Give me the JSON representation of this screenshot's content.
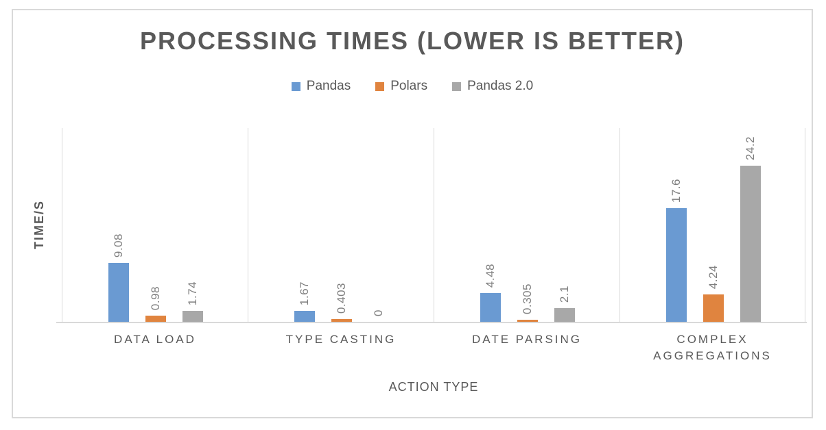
{
  "chart_data": {
    "type": "bar",
    "title": "PROCESSING TIMES (LOWER IS BETTER)",
    "xlabel": "ACTION TYPE",
    "ylabel": "TIME/S",
    "ylim": [
      0,
      30
    ],
    "grid": "vertical category separator lines only, no horizontal gridlines, no y tick labels",
    "legend_position": "top-center",
    "value_label_rotation": "90deg (vertical, reading bottom to top)",
    "categories": [
      "DATA LOAD",
      "TYPE CASTING",
      "DATE PARSING",
      "COMPLEX AGGREGATIONS"
    ],
    "series": [
      {
        "name": "Pandas",
        "color": "#6A9AD2",
        "values": [
          9.08,
          1.67,
          4.48,
          17.6
        ],
        "value_labels": [
          "9.08",
          "1.67",
          "4.48",
          "17.6"
        ]
      },
      {
        "name": "Polars",
        "color": "#E0843F",
        "values": [
          0.98,
          0.403,
          0.305,
          4.24
        ],
        "value_labels": [
          "0.98",
          "0.403",
          "0.305",
          "4.24"
        ]
      },
      {
        "name": "Pandas 2.0",
        "color": "#A8A8A8",
        "values": [
          1.74,
          0,
          2.1,
          24.2
        ],
        "value_labels": [
          "1.74",
          "0",
          "2.1",
          "24.2"
        ]
      }
    ]
  },
  "colors": {
    "title_text": "#595959",
    "axis_text": "#595959",
    "category_text": "#595959",
    "value_label_text": "#7F7F7F",
    "grid_line": "#D9D9D9",
    "chart_border": "#D9D9D9",
    "background": "#FFFFFF"
  }
}
